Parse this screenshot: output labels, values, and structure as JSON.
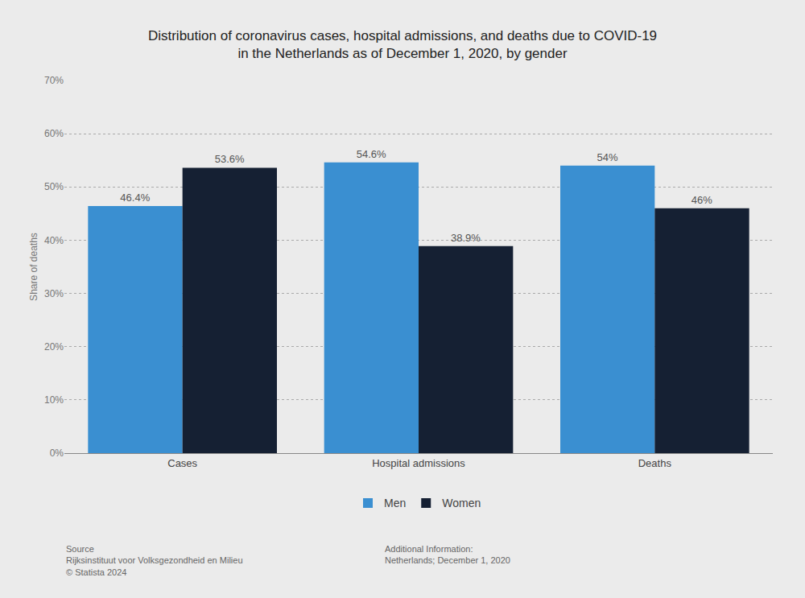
{
  "chart_data": {
    "type": "bar",
    "title": "Distribution of coronavirus cases, hospital admissions, and deaths due to COVID-19\nin the Netherlands as of December 1, 2020, by gender",
    "categories": [
      "Cases",
      "Hospital admissions",
      "Deaths"
    ],
    "series": [
      {
        "name": "Men",
        "color": "#3a8fd1",
        "values": [
          46.4,
          54.6,
          54.0
        ],
        "value_labels": [
          "46.4%",
          "54.6%",
          "54%"
        ]
      },
      {
        "name": "Women",
        "color": "#152033",
        "values": [
          53.6,
          38.9,
          46.0
        ],
        "value_labels": [
          "53.6%",
          "38.9%",
          "46%"
        ]
      }
    ],
    "ylabel": "Share of deaths",
    "ylim": [
      0,
      70
    ],
    "yticks": [
      {
        "value": 0,
        "label": "0%"
      },
      {
        "value": 10,
        "label": "10%"
      },
      {
        "value": 20,
        "label": "20%"
      },
      {
        "value": 30,
        "label": "30%"
      },
      {
        "value": 40,
        "label": "40%"
      },
      {
        "value": 50,
        "label": "50%"
      },
      {
        "value": 60,
        "label": "60%"
      },
      {
        "value": 70,
        "label": "70%"
      }
    ],
    "grid": true,
    "legend": "bottom",
    "data_labels": true,
    "annotations": [
      "Source\nRijksinstituut voor Volksgezondheid en Milieu\n© Statista 2024",
      "Additional Information:\nNetherlands; December 1, 2020"
    ]
  }
}
